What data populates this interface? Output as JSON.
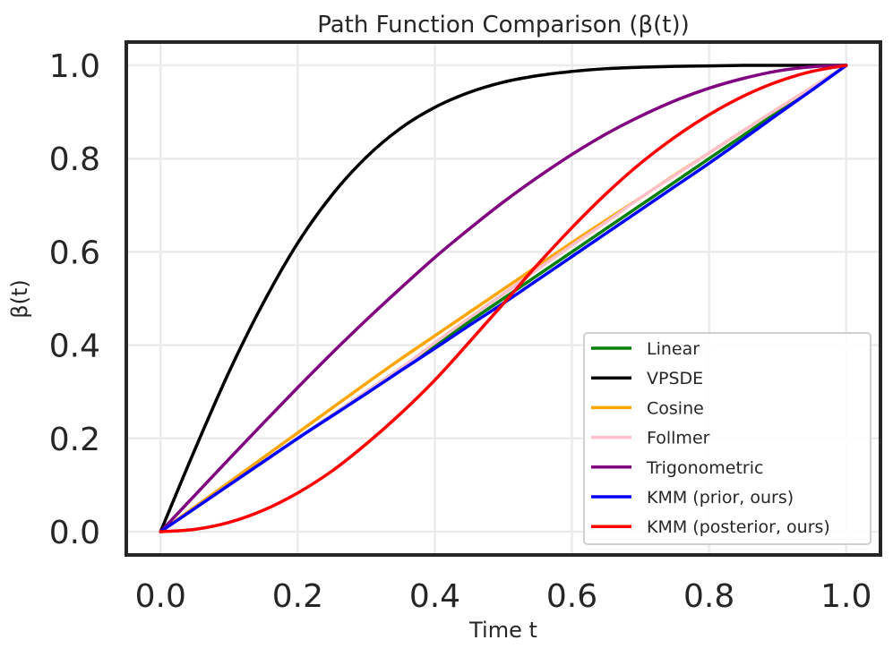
{
  "chart_data": {
    "type": "line",
    "title": "Path Function Comparison (β(t))",
    "xlabel": "Time t",
    "ylabel": "β(t)",
    "xlim": [
      -0.05,
      1.05
    ],
    "ylim": [
      -0.05,
      1.05
    ],
    "xticks": [
      0.0,
      0.2,
      0.4,
      0.6,
      0.8,
      1.0
    ],
    "xtick_labels": [
      "0.0",
      "0.2",
      "0.4",
      "0.6",
      "0.8",
      "1.0"
    ],
    "yticks": [
      0.0,
      0.2,
      0.4,
      0.6,
      0.8,
      1.0
    ],
    "ytick_labels": [
      "0.0",
      "0.2",
      "0.4",
      "0.6",
      "0.8",
      "1.0"
    ],
    "grid": true,
    "legend_position": "lower-right",
    "x": [
      0.0,
      0.05,
      0.1,
      0.15,
      0.2,
      0.25,
      0.3,
      0.35,
      0.4,
      0.45,
      0.5,
      0.55,
      0.6,
      0.65,
      0.7,
      0.75,
      0.8,
      0.85,
      0.9,
      0.95,
      1.0
    ],
    "series": [
      {
        "name": "Linear",
        "color": "#008000",
        "values": [
          0.0,
          0.05,
          0.1,
          0.15,
          0.2,
          0.25,
          0.3,
          0.35,
          0.4,
          0.45,
          0.5,
          0.55,
          0.6,
          0.65,
          0.7,
          0.75,
          0.8,
          0.85,
          0.9,
          0.95,
          1.0
        ]
      },
      {
        "name": "VPSDE",
        "color": "#000000",
        "values": [
          0.0,
          0.176,
          0.343,
          0.491,
          0.619,
          0.722,
          0.803,
          0.865,
          0.91,
          0.942,
          0.964,
          0.978,
          0.987,
          0.993,
          0.996,
          0.998,
          0.999,
          1.0,
          1.0,
          1.0,
          1.0
        ]
      },
      {
        "name": "Cosine",
        "color": "#ffa500",
        "values": [
          0.0,
          0.053,
          0.106,
          0.159,
          0.212,
          0.265,
          0.318,
          0.37,
          0.42,
          0.47,
          0.52,
          0.57,
          0.62,
          0.668,
          0.716,
          0.765,
          0.812,
          0.86,
          0.907,
          0.953,
          1.0
        ]
      },
      {
        "name": "Follmer",
        "color": "#ffc0cb",
        "values": [
          0.0,
          0.05,
          0.1,
          0.15,
          0.2,
          0.25,
          0.3,
          0.35,
          0.405,
          0.458,
          0.51,
          0.563,
          0.614,
          0.664,
          0.716,
          0.764,
          0.812,
          0.86,
          0.907,
          0.953,
          1.0
        ]
      },
      {
        "name": "Trigonometric",
        "color": "#800080",
        "values": [
          0.0,
          0.078,
          0.156,
          0.233,
          0.309,
          0.383,
          0.454,
          0.522,
          0.588,
          0.649,
          0.707,
          0.76,
          0.809,
          0.853,
          0.891,
          0.924,
          0.951,
          0.972,
          0.988,
          0.997,
          1.0
        ]
      },
      {
        "name": "KMM (prior, ours)",
        "color": "#0000ff",
        "values": [
          0.0,
          0.05,
          0.1,
          0.15,
          0.2,
          0.248,
          0.296,
          0.345,
          0.393,
          0.442,
          0.49,
          0.54,
          0.59,
          0.64,
          0.69,
          0.74,
          0.79,
          0.842,
          0.895,
          0.947,
          1.0
        ]
      },
      {
        "name": "KMM (posterior, ours)",
        "color": "#ff0000",
        "values": [
          0.0,
          0.005,
          0.02,
          0.046,
          0.083,
          0.13,
          0.188,
          0.253,
          0.325,
          0.406,
          0.489,
          0.573,
          0.652,
          0.725,
          0.79,
          0.846,
          0.894,
          0.934,
          0.965,
          0.987,
          1.0
        ]
      }
    ]
  }
}
